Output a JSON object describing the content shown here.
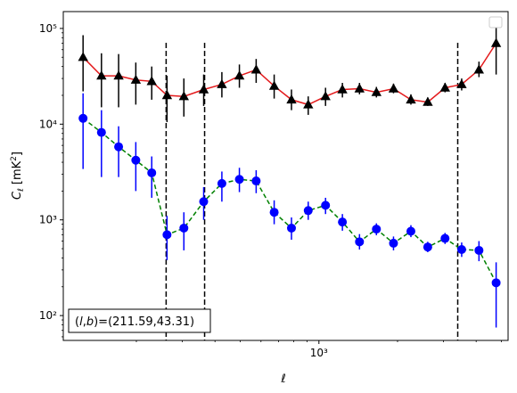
{
  "chart_data": {
    "type": "scatter",
    "xscale": "log",
    "yscale": "log",
    "xlim": [
      105,
      5300
    ],
    "ylim": [
      55,
      150000
    ],
    "xlabel": "ℓ",
    "ylabel": "C_ℓ  [mK²]",
    "x_ticks": [
      {
        "value": 1000,
        "label": "10³"
      }
    ],
    "y_ticks": [
      {
        "value": 100,
        "label": "10²"
      },
      {
        "value": 1000,
        "label": "10³"
      },
      {
        "value": 10000,
        "label": "10⁴"
      },
      {
        "value": 100000,
        "label": "10⁵"
      }
    ],
    "vlines": [
      260,
      365,
      3400
    ],
    "legend": "top-right, empty",
    "annotation": "(l,b)=(211.59,43.31)",
    "series": [
      {
        "marker": "triangle",
        "marker_color": "#000000",
        "line_color": "#e41a1c",
        "line_style": "solid",
        "errorbar_color": "#000000",
        "points": [
          {
            "x": 125,
            "y": 50000,
            "lo": 22000,
            "hi": 85000
          },
          {
            "x": 147,
            "y": 32000,
            "lo": 15000,
            "hi": 55000
          },
          {
            "x": 171,
            "y": 32000,
            "lo": 15000,
            "hi": 54000
          },
          {
            "x": 199,
            "y": 29000,
            "lo": 16000,
            "hi": 44000
          },
          {
            "x": 229,
            "y": 28000,
            "lo": 18000,
            "hi": 40000
          },
          {
            "x": 262,
            "y": 20000,
            "lo": 10500,
            "hi": 32000
          },
          {
            "x": 304,
            "y": 19500,
            "lo": 12000,
            "hi": 30000
          },
          {
            "x": 362,
            "y": 23000,
            "lo": 15500,
            "hi": 33000
          },
          {
            "x": 425,
            "y": 26000,
            "lo": 19000,
            "hi": 35000
          },
          {
            "x": 496,
            "y": 32000,
            "lo": 24000,
            "hi": 42000
          },
          {
            "x": 575,
            "y": 37000,
            "lo": 27000,
            "hi": 48000
          },
          {
            "x": 674,
            "y": 25000,
            "lo": 18500,
            "hi": 33000
          },
          {
            "x": 785,
            "y": 18000,
            "lo": 14000,
            "hi": 23000
          },
          {
            "x": 910,
            "y": 16000,
            "lo": 12500,
            "hi": 19500
          },
          {
            "x": 1060,
            "y": 19500,
            "lo": 15500,
            "hi": 24000
          },
          {
            "x": 1230,
            "y": 23000,
            "lo": 19000,
            "hi": 27000
          },
          {
            "x": 1430,
            "y": 23500,
            "lo": 20500,
            "hi": 27000
          },
          {
            "x": 1660,
            "y": 21500,
            "lo": 19000,
            "hi": 24500
          },
          {
            "x": 1930,
            "y": 23500,
            "lo": 21000,
            "hi": 26500
          },
          {
            "x": 2250,
            "y": 18000,
            "lo": 16000,
            "hi": 20500
          },
          {
            "x": 2610,
            "y": 17000,
            "lo": 15500,
            "hi": 19000
          },
          {
            "x": 3040,
            "y": 24000,
            "lo": 21500,
            "hi": 27000
          },
          {
            "x": 3520,
            "y": 26000,
            "lo": 22500,
            "hi": 30000
          },
          {
            "x": 4100,
            "y": 37000,
            "lo": 31000,
            "hi": 45000
          },
          {
            "x": 4770,
            "y": 70000,
            "lo": 33000,
            "hi": 110000
          }
        ]
      },
      {
        "marker": "circle",
        "marker_color": "#0000ff",
        "line_color": "#008000",
        "line_style": "dashed",
        "errorbar_color": "#0000ff",
        "points": [
          {
            "x": 125,
            "y": 11500,
            "lo": 3400,
            "hi": 21000
          },
          {
            "x": 147,
            "y": 8200,
            "lo": 2800,
            "hi": 14000
          },
          {
            "x": 171,
            "y": 5800,
            "lo": 2800,
            "hi": 9500
          },
          {
            "x": 199,
            "y": 4200,
            "lo": 2000,
            "hi": 6500
          },
          {
            "x": 229,
            "y": 3100,
            "lo": 1700,
            "hi": 4600
          },
          {
            "x": 262,
            "y": 700,
            "lo": 380,
            "hi": 1100
          },
          {
            "x": 304,
            "y": 820,
            "lo": 480,
            "hi": 1200
          },
          {
            "x": 362,
            "y": 1550,
            "lo": 1000,
            "hi": 2200
          },
          {
            "x": 425,
            "y": 2400,
            "lo": 1550,
            "hi": 3200
          },
          {
            "x": 496,
            "y": 2650,
            "lo": 1950,
            "hi": 3500
          },
          {
            "x": 575,
            "y": 2550,
            "lo": 1900,
            "hi": 3300
          },
          {
            "x": 674,
            "y": 1200,
            "lo": 900,
            "hi": 1600
          },
          {
            "x": 785,
            "y": 820,
            "lo": 620,
            "hi": 1060
          },
          {
            "x": 910,
            "y": 1250,
            "lo": 1000,
            "hi": 1550
          },
          {
            "x": 1060,
            "y": 1420,
            "lo": 1150,
            "hi": 1700
          },
          {
            "x": 1230,
            "y": 950,
            "lo": 770,
            "hi": 1150
          },
          {
            "x": 1430,
            "y": 590,
            "lo": 490,
            "hi": 710
          },
          {
            "x": 1660,
            "y": 800,
            "lo": 690,
            "hi": 920
          },
          {
            "x": 1930,
            "y": 570,
            "lo": 480,
            "hi": 670
          },
          {
            "x": 2250,
            "y": 760,
            "lo": 660,
            "hi": 880
          },
          {
            "x": 2610,
            "y": 520,
            "lo": 460,
            "hi": 590
          },
          {
            "x": 3040,
            "y": 640,
            "lo": 560,
            "hi": 730
          },
          {
            "x": 3520,
            "y": 490,
            "lo": 410,
            "hi": 580
          },
          {
            "x": 4100,
            "y": 480,
            "lo": 370,
            "hi": 600
          },
          {
            "x": 4770,
            "y": 220,
            "lo": 75,
            "hi": 360
          }
        ]
      }
    ]
  }
}
